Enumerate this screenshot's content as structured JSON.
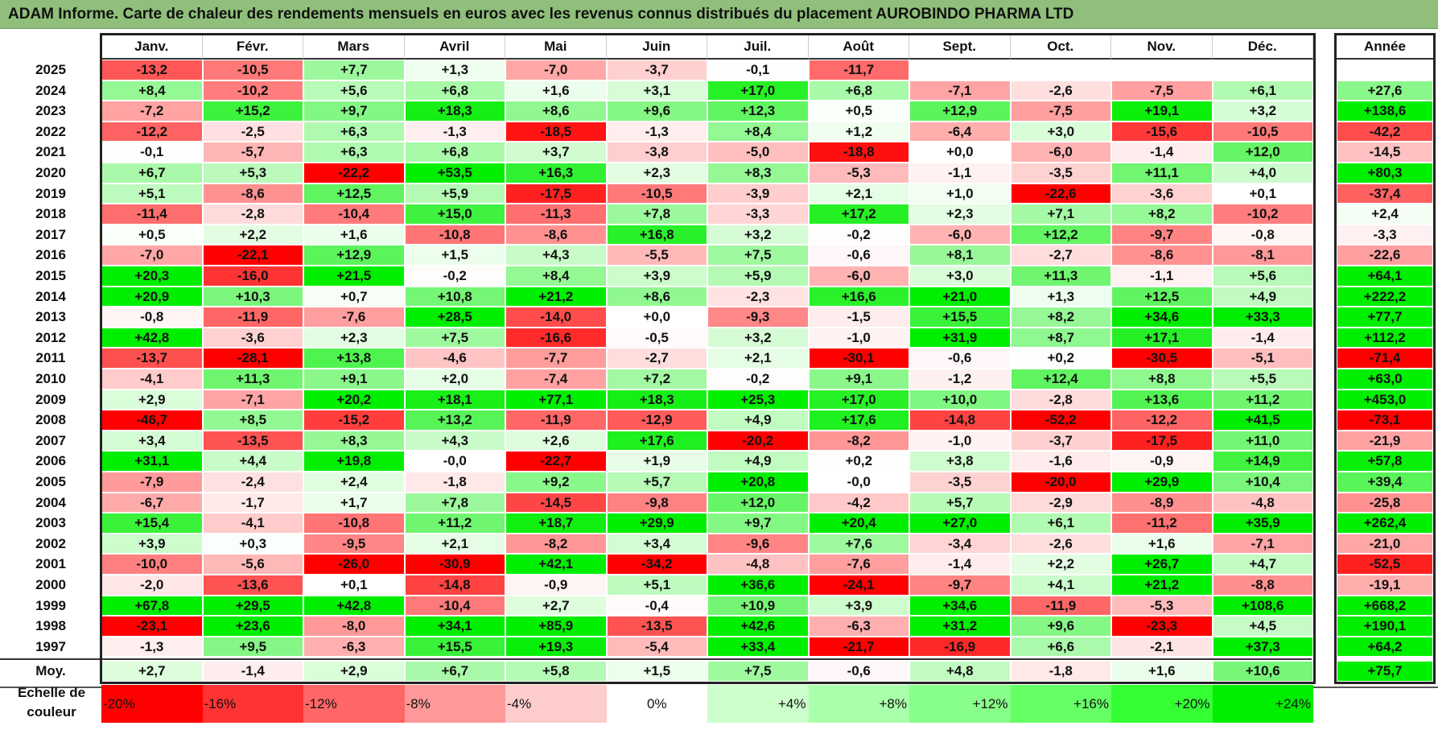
{
  "title": "ADAM Informe. Carte de chaleur des rendements mensuels en euros avec les revenus connus distribués du placement AUROBINDO PHARMA LTD",
  "chart_data": {
    "type": "heatmap",
    "columns": [
      "Janv.",
      "Févr.",
      "Mars",
      "Avril",
      "Mai",
      "Juin",
      "Juil.",
      "Août",
      "Sept.",
      "Oct.",
      "Nov.",
      "Déc."
    ],
    "year_column_label": "Année",
    "rows": [
      {
        "year": "2025",
        "months": [
          "-13,2",
          "-10,5",
          "+7,7",
          "+1,3",
          "-7,0",
          "-3,7",
          "-0,1",
          "-11,7",
          "",
          "",
          "",
          ""
        ],
        "annual": ""
      },
      {
        "year": "2024",
        "months": [
          "+8,4",
          "-10,2",
          "+5,6",
          "+6,8",
          "+1,6",
          "+3,1",
          "+17,0",
          "+6,8",
          "-7,1",
          "-2,6",
          "-7,5",
          "+6,1"
        ],
        "annual": "+27,6"
      },
      {
        "year": "2023",
        "months": [
          "-7,2",
          "+15,2",
          "+9,7",
          "+18,3",
          "+8,6",
          "+9,6",
          "+12,3",
          "+0,5",
          "+12,9",
          "-7,5",
          "+19,1",
          "+3,2"
        ],
        "annual": "+138,6"
      },
      {
        "year": "2022",
        "months": [
          "-12,2",
          "-2,5",
          "+6,3",
          "-1,3",
          "-18,5",
          "-1,3",
          "+8,4",
          "+1,2",
          "-6,4",
          "+3,0",
          "-15,6",
          "-10,5"
        ],
        "annual": "-42,2"
      },
      {
        "year": "2021",
        "months": [
          "-0,1",
          "-5,7",
          "+6,3",
          "+6,8",
          "+3,7",
          "-3,8",
          "-5,0",
          "-18,8",
          "+0,0",
          "-6,0",
          "-1,4",
          "+12,0"
        ],
        "annual": "-14,5"
      },
      {
        "year": "2020",
        "months": [
          "+6,7",
          "+5,3",
          "-22,2",
          "+53,5",
          "+16,3",
          "+2,3",
          "+8,3",
          "-5,3",
          "-1,1",
          "-3,5",
          "+11,1",
          "+4,0"
        ],
        "annual": "+80,3"
      },
      {
        "year": "2019",
        "months": [
          "+5,1",
          "-8,6",
          "+12,5",
          "+5,9",
          "-17,5",
          "-10,5",
          "-3,9",
          "+2,1",
          "+1,0",
          "-22,6",
          "-3,6",
          "+0,1"
        ],
        "annual": "-37,4"
      },
      {
        "year": "2018",
        "months": [
          "-11,4",
          "-2,8",
          "-10,4",
          "+15,0",
          "-11,3",
          "+7,8",
          "-3,3",
          "+17,2",
          "+2,3",
          "+7,1",
          "+8,2",
          "-10,2"
        ],
        "annual": "+2,4"
      },
      {
        "year": "2017",
        "months": [
          "+0,5",
          "+2,2",
          "+1,6",
          "-10,8",
          "-8,6",
          "+16,8",
          "+3,2",
          "-0,2",
          "-6,0",
          "+12,2",
          "-9,7",
          "-0,8"
        ],
        "annual": "-3,3"
      },
      {
        "year": "2016",
        "months": [
          "-7,0",
          "-22,1",
          "+12,9",
          "+1,5",
          "+4,3",
          "-5,5",
          "+7,5",
          "-0,6",
          "+8,1",
          "-2,7",
          "-8,6",
          "-8,1"
        ],
        "annual": "-22,6"
      },
      {
        "year": "2015",
        "months": [
          "+20,3",
          "-16,0",
          "+21,5",
          "-0,2",
          "+8,4",
          "+3,9",
          "+5,9",
          "-6,0",
          "+3,0",
          "+11,3",
          "-1,1",
          "+5,6"
        ],
        "annual": "+64,1"
      },
      {
        "year": "2014",
        "months": [
          "+20,9",
          "+10,3",
          "+0,7",
          "+10,8",
          "+21,2",
          "+8,6",
          "-2,3",
          "+16,6",
          "+21,0",
          "+1,3",
          "+12,5",
          "+4,9"
        ],
        "annual": "+222,2"
      },
      {
        "year": "2013",
        "months": [
          "-0,8",
          "-11,9",
          "-7,6",
          "+28,5",
          "-14,0",
          "+0,0",
          "-9,3",
          "-1,5",
          "+15,5",
          "+8,2",
          "+34,6",
          "+33,3"
        ],
        "annual": "+77,7"
      },
      {
        "year": "2012",
        "months": [
          "+42,8",
          "-3,6",
          "+2,3",
          "+7,5",
          "-16,6",
          "-0,5",
          "+3,2",
          "-1,0",
          "+31,9",
          "+8,7",
          "+17,1",
          "-1,4"
        ],
        "annual": "+112,2"
      },
      {
        "year": "2011",
        "months": [
          "-13,7",
          "-28,1",
          "+13,8",
          "-4,6",
          "-7,7",
          "-2,7",
          "+2,1",
          "-30,1",
          "-0,6",
          "+0,2",
          "-30,5",
          "-5,1"
        ],
        "annual": "-71,4"
      },
      {
        "year": "2010",
        "months": [
          "-4,1",
          "+11,3",
          "+9,1",
          "+2,0",
          "-7,4",
          "+7,2",
          "-0,2",
          "+9,1",
          "-1,2",
          "+12,4",
          "+8,8",
          "+5,5"
        ],
        "annual": "+63,0"
      },
      {
        "year": "2009",
        "months": [
          "+2,9",
          "-7,1",
          "+20,2",
          "+18,1",
          "+77,1",
          "+18,3",
          "+25,3",
          "+17,0",
          "+10,0",
          "-2,8",
          "+13,6",
          "+11,2"
        ],
        "annual": "+453,0"
      },
      {
        "year": "2008",
        "months": [
          "-46,7",
          "+8,5",
          "-15,2",
          "+13,2",
          "-11,9",
          "-12,9",
          "+4,9",
          "+17,6",
          "-14,8",
          "-52,2",
          "-12,2",
          "+41,5"
        ],
        "annual": "-73,1"
      },
      {
        "year": "2007",
        "months": [
          "+3,4",
          "-13,5",
          "+8,3",
          "+4,3",
          "+2,6",
          "+17,6",
          "-20,2",
          "-8,2",
          "-1,0",
          "-3,7",
          "-17,5",
          "+11,0"
        ],
        "annual": "-21,9"
      },
      {
        "year": "2006",
        "months": [
          "+31,1",
          "+4,4",
          "+19,8",
          "-0,0",
          "-22,7",
          "+1,9",
          "+4,9",
          "+0,2",
          "+3,8",
          "-1,6",
          "-0,9",
          "+14,9"
        ],
        "annual": "+57,8"
      },
      {
        "year": "2005",
        "months": [
          "-7,9",
          "-2,4",
          "+2,4",
          "-1,8",
          "+9,2",
          "+5,7",
          "+20,8",
          "-0,0",
          "-3,5",
          "-20,0",
          "+29,9",
          "+10,4"
        ],
        "annual": "+39,4"
      },
      {
        "year": "2004",
        "months": [
          "-6,7",
          "-1,7",
          "+1,7",
          "+7,8",
          "-14,5",
          "-9,8",
          "+12,0",
          "-4,2",
          "+5,7",
          "-2,9",
          "-8,9",
          "-4,8"
        ],
        "annual": "-25,8"
      },
      {
        "year": "2003",
        "months": [
          "+15,4",
          "-4,1",
          "-10,8",
          "+11,2",
          "+18,7",
          "+29,9",
          "+9,7",
          "+20,4",
          "+27,0",
          "+6,1",
          "-11,2",
          "+35,9"
        ],
        "annual": "+262,4"
      },
      {
        "year": "2002",
        "months": [
          "+3,9",
          "+0,3",
          "-9,5",
          "+2,1",
          "-8,2",
          "+3,4",
          "-9,6",
          "+7,6",
          "-3,4",
          "-2,6",
          "+1,6",
          "-7,1"
        ],
        "annual": "-21,0"
      },
      {
        "year": "2001",
        "months": [
          "-10,0",
          "-5,6",
          "-26,0",
          "-30,9",
          "+42,1",
          "-34,2",
          "-4,8",
          "-7,6",
          "-1,4",
          "+2,2",
          "+26,7",
          "+4,7"
        ],
        "annual": "-52,5"
      },
      {
        "year": "2000",
        "months": [
          "-2,0",
          "-13,6",
          "+0,1",
          "-14,8",
          "-0,9",
          "+5,1",
          "+36,6",
          "-24,1",
          "-9,7",
          "+4,1",
          "+21,2",
          "-8,8"
        ],
        "annual": "-19,1"
      },
      {
        "year": "1999",
        "months": [
          "+67,8",
          "+29,5",
          "+42,8",
          "-10,4",
          "+2,7",
          "-0,4",
          "+10,9",
          "+3,9",
          "+34,6",
          "-11,9",
          "-5,3",
          "+108,6"
        ],
        "annual": "+668,2"
      },
      {
        "year": "1998",
        "months": [
          "-23,1",
          "+23,6",
          "-8,0",
          "+34,1",
          "+85,9",
          "-13,5",
          "+42,6",
          "-6,3",
          "+31,2",
          "+9,6",
          "-23,3",
          "+4,5"
        ],
        "annual": "+190,1"
      },
      {
        "year": "1997",
        "months": [
          "-1,3",
          "+9,5",
          "-6,3",
          "+15,5",
          "+19,3",
          "-5,4",
          "+33,4",
          "-21,7",
          "-16,9",
          "+6,6",
          "-2,1",
          "+37,3"
        ],
        "annual": "+64,2"
      }
    ],
    "average": {
      "label": "Moy.",
      "months": [
        "+2,7",
        "-1,4",
        "+2,9",
        "+6,7",
        "+5,8",
        "+1,5",
        "+7,5",
        "-0,6",
        "+4,8",
        "-1,8",
        "+1,6",
        "+10,6"
      ],
      "annual": "+75,7"
    },
    "color_scale": {
      "label": "Echelle de couleur",
      "stops": [
        {
          "label": "-20%",
          "value": -20,
          "color": "#ff0000"
        },
        {
          "label": "-16%",
          "value": -16,
          "color": "#ff3333"
        },
        {
          "label": "-12%",
          "value": -12,
          "color": "#ff6666"
        },
        {
          "label": "-8%",
          "value": -8,
          "color": "#ff9999"
        },
        {
          "label": "-4%",
          "value": -4,
          "color": "#ffcccc"
        },
        {
          "label": "0%",
          "value": 0,
          "color": "#ffffff"
        },
        {
          "label": "+4%",
          "value": 4,
          "color": "#ccffcc"
        },
        {
          "label": "+8%",
          "value": 8,
          "color": "#aaffaa"
        },
        {
          "label": "+12%",
          "value": 12,
          "color": "#88ff88"
        },
        {
          "label": "+16%",
          "value": 16,
          "color": "#66ff66"
        },
        {
          "label": "+20%",
          "value": 20,
          "color": "#33ff33"
        },
        {
          "label": "+24%",
          "value": 24,
          "color": "#00ee00"
        }
      ]
    },
    "colors": {
      "title_bar": "#8fbf7a",
      "negative_max": "#ff0000",
      "positive_max": "#00ee00",
      "neutral": "#ffffff"
    }
  }
}
